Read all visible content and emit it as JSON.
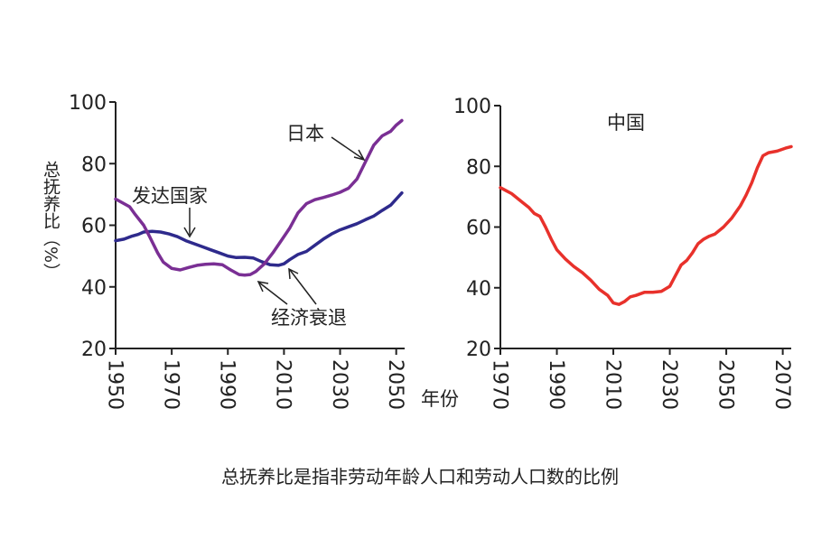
{
  "caption": "总抚养比是指非劳动年龄人口和劳动人口数的比例",
  "chart_data": [
    {
      "type": "line",
      "title": "",
      "ylabel": "总抚养比（%）",
      "xlabel": "",
      "xlim": [
        1950,
        2053
      ],
      "ylim": [
        20,
        100
      ],
      "yticks": [
        20,
        40,
        60,
        80,
        100
      ],
      "xticks": [
        1950,
        1970,
        1990,
        2010,
        2030,
        2050
      ],
      "grid": false,
      "series": [
        {
          "name": "发达国家",
          "color": "#2e2a8c",
          "x": [
            1950,
            1953,
            1956,
            1958,
            1960,
            1963,
            1966,
            1969,
            1972,
            1975,
            1978,
            1981,
            1984,
            1987,
            1990,
            1993,
            1996,
            1999,
            2002,
            2005,
            2008,
            2010,
            2012,
            2015,
            2018,
            2021,
            2024,
            2027,
            2030,
            2033,
            2036,
            2039,
            2042,
            2045,
            2048,
            2050,
            2052
          ],
          "y": [
            55,
            55.5,
            56.5,
            57,
            57.8,
            58,
            57.8,
            57.2,
            56.3,
            55,
            54,
            53,
            52,
            51,
            50,
            49.5,
            49.6,
            49.4,
            48.2,
            47.2,
            47,
            47.5,
            48.8,
            50.5,
            51.5,
            53.5,
            55.5,
            57.2,
            58.5,
            59.5,
            60.5,
            61.8,
            63,
            64.8,
            66.5,
            68.5,
            70.5
          ]
        },
        {
          "name": "日本",
          "color": "#7a2f94",
          "x": [
            1950,
            1952,
            1955,
            1957,
            1960,
            1962,
            1965,
            1967,
            1970,
            1973,
            1976,
            1979,
            1982,
            1985,
            1988,
            1991,
            1994,
            1996,
            1998,
            2000,
            2003,
            2006,
            2009,
            2012,
            2015,
            2018,
            2021,
            2024,
            2027,
            2030,
            2033,
            2036,
            2039,
            2042,
            2045,
            2048,
            2050,
            2052
          ],
          "y": [
            68.5,
            67.5,
            66,
            63.5,
            60,
            56.5,
            51,
            48,
            46,
            45.5,
            46.3,
            47,
            47.3,
            47.5,
            47.2,
            45.5,
            44,
            43.8,
            44,
            45,
            47.5,
            51,
            55,
            59,
            64,
            67,
            68.3,
            69,
            69.8,
            70.7,
            72,
            75,
            80.5,
            86,
            89,
            90.5,
            92.5,
            94
          ]
        }
      ],
      "annotations": [
        "发达国家",
        "日本",
        "经济衰退"
      ]
    },
    {
      "type": "line",
      "title": "中国",
      "xlabel": "年份",
      "ylabel": "",
      "xlim": [
        1970,
        2073
      ],
      "ylim": [
        20,
        100
      ],
      "yticks": [
        20,
        40,
        60,
        80,
        100
      ],
      "xticks": [
        1970,
        1990,
        2010,
        2030,
        2050,
        2070
      ],
      "grid": false,
      "series": [
        {
          "color": "#e8312b",
          "x": [
            1970,
            1972,
            1974,
            1976,
            1978,
            1980,
            1982,
            1984,
            1986,
            1988,
            1990,
            1993,
            1996,
            1999,
            2002,
            2005,
            2008,
            2010,
            2012,
            2014,
            2016,
            2018,
            2021,
            2024,
            2027,
            2030,
            2032,
            2034,
            2036,
            2038,
            2040,
            2042,
            2044,
            2046,
            2049,
            2052,
            2055,
            2057,
            2059,
            2061,
            2063,
            2065,
            2068,
            2071,
            2073
          ],
          "y": [
            73,
            72,
            71,
            69.5,
            68,
            66.5,
            64.5,
            63.5,
            60,
            56,
            52.5,
            49.5,
            47,
            45,
            42.5,
            39.5,
            37.5,
            35,
            34.5,
            35.5,
            37,
            37.5,
            38.5,
            38.5,
            38.8,
            40.5,
            44,
            47.5,
            49,
            51.5,
            54.5,
            56,
            57,
            57.7,
            60,
            63,
            67,
            70.5,
            74.5,
            79.5,
            83.5,
            84.5,
            85,
            86,
            86.5
          ]
        }
      ]
    }
  ]
}
